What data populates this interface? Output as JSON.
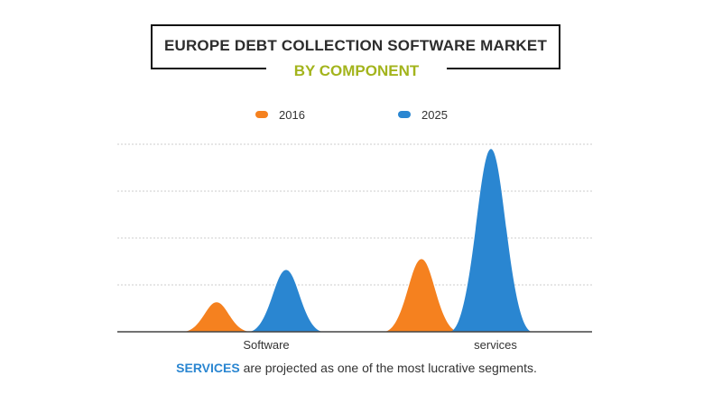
{
  "header": {
    "title": "EUROPE DEBT COLLECTION SOFTWARE MARKET",
    "subtitle": "BY COMPONENT"
  },
  "caption": {
    "highlight": "SERVICES",
    "rest": " are projected as one of the most lucrative segments."
  },
  "colors": {
    "series_2016": "#f5811f",
    "series_2025": "#2a86d1",
    "title_accent": "#a3b41c",
    "grid": "#cccccc",
    "axis": "#444444"
  },
  "chart_data": {
    "type": "area",
    "title": "EUROPE DEBT COLLECTION SOFTWARE MARKET",
    "subtitle": "BY COMPONENT",
    "categories": [
      "Software",
      "services"
    ],
    "series": [
      {
        "name": "2016",
        "values": [
          0.63,
          1.55
        ]
      },
      {
        "name": "2025",
        "values": [
          1.32,
          3.9
        ]
      }
    ],
    "xlabel": "",
    "ylabel": "",
    "ylim": [
      0,
      4
    ],
    "grid": true,
    "legend_position": "top-center"
  }
}
